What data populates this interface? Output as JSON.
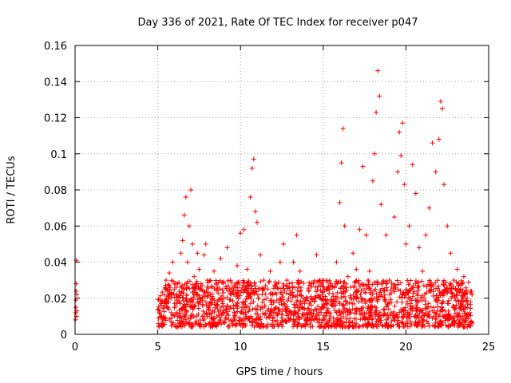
{
  "chart_data": {
    "type": "scatter",
    "title": "Day 336 of 2021, Rate Of TEC Index for receiver p047",
    "xlabel": "GPS time / hours",
    "ylabel": "ROTI / TECUs",
    "xlim": [
      0,
      25
    ],
    "ylim": [
      0,
      0.16
    ],
    "x_ticks": [
      0,
      5,
      10,
      15,
      20,
      25
    ],
    "y_ticks": [
      0,
      0.02,
      0.04,
      0.06,
      0.08,
      0.1,
      0.12,
      0.14,
      0.16
    ],
    "x_tick_labels": [
      "0",
      "5",
      "10",
      "15",
      "20",
      "25"
    ],
    "y_tick_labels": [
      "0",
      "0.02",
      "0.04",
      "0.06",
      "0.08",
      "0.1",
      "0.12",
      "0.14",
      "0.16"
    ],
    "grid": true,
    "marker": "plus",
    "color": "#ff0000",
    "series": [
      {
        "name": "p047",
        "points": [
          [
            0.02,
            0.008
          ],
          [
            0.03,
            0.012
          ],
          [
            0.04,
            0.015
          ],
          [
            0.05,
            0.019
          ],
          [
            0.06,
            0.024
          ],
          [
            0.07,
            0.028
          ],
          [
            0.08,
            0.041
          ],
          [
            0.09,
            0.01
          ],
          [
            0.1,
            0.022
          ],
          [
            0.11,
            0.013
          ],
          [
            5.1,
            0.012
          ],
          [
            5.2,
            0.018
          ],
          [
            5.3,
            0.008
          ],
          [
            5.4,
            0.022
          ],
          [
            5.5,
            0.03
          ],
          [
            5.6,
            0.015
          ],
          [
            5.7,
            0.034
          ],
          [
            5.8,
            0.02
          ],
          [
            5.9,
            0.04
          ],
          [
            6.0,
            0.025
          ],
          [
            6.1,
            0.012
          ],
          [
            6.2,
            0.028
          ],
          [
            6.3,
            0.018
          ],
          [
            6.4,
            0.045
          ],
          [
            6.5,
            0.052
          ],
          [
            6.6,
            0.066
          ],
          [
            6.7,
            0.076
          ],
          [
            6.8,
            0.04
          ],
          [
            6.9,
            0.06
          ],
          [
            7.0,
            0.08
          ],
          [
            7.1,
            0.05
          ],
          [
            7.2,
            0.032
          ],
          [
            7.3,
            0.022
          ],
          [
            7.4,
            0.045
          ],
          [
            7.5,
            0.036
          ],
          [
            7.6,
            0.028
          ],
          [
            7.7,
            0.02
          ],
          [
            7.8,
            0.044
          ],
          [
            7.9,
            0.05
          ],
          [
            8.0,
            0.03
          ],
          [
            8.2,
            0.018
          ],
          [
            8.4,
            0.035
          ],
          [
            8.6,
            0.025
          ],
          [
            8.8,
            0.042
          ],
          [
            9.0,
            0.02
          ],
          [
            9.2,
            0.048
          ],
          [
            9.4,
            0.03
          ],
          [
            9.6,
            0.022
          ],
          [
            9.8,
            0.038
          ],
          [
            10.0,
            0.056
          ],
          [
            10.2,
            0.058
          ],
          [
            10.4,
            0.036
          ],
          [
            10.6,
            0.076
          ],
          [
            10.7,
            0.092
          ],
          [
            10.8,
            0.097
          ],
          [
            10.9,
            0.068
          ],
          [
            11.0,
            0.062
          ],
          [
            11.2,
            0.044
          ],
          [
            11.4,
            0.03
          ],
          [
            11.6,
            0.02
          ],
          [
            11.8,
            0.035
          ],
          [
            12.0,
            0.018
          ],
          [
            12.2,
            0.028
          ],
          [
            12.4,
            0.04
          ],
          [
            12.6,
            0.05
          ],
          [
            12.8,
            0.03
          ],
          [
            13.0,
            0.022
          ],
          [
            13.2,
            0.04
          ],
          [
            13.4,
            0.055
          ],
          [
            13.6,
            0.035
          ],
          [
            13.8,
            0.02
          ],
          [
            14.0,
            0.012
          ],
          [
            14.2,
            0.018
          ],
          [
            14.4,
            0.028
          ],
          [
            14.6,
            0.044
          ],
          [
            14.8,
            0.02
          ],
          [
            15.0,
            0.015
          ],
          [
            15.2,
            0.03
          ],
          [
            15.4,
            0.025
          ],
          [
            15.6,
            0.018
          ],
          [
            15.8,
            0.04
          ],
          [
            16.0,
            0.073
          ],
          [
            16.1,
            0.095
          ],
          [
            16.2,
            0.114
          ],
          [
            16.3,
            0.06
          ],
          [
            16.5,
            0.032
          ],
          [
            16.8,
            0.045
          ],
          [
            17.0,
            0.036
          ],
          [
            17.2,
            0.058
          ],
          [
            17.4,
            0.093
          ],
          [
            17.6,
            0.055
          ],
          [
            17.8,
            0.035
          ],
          [
            18.0,
            0.085
          ],
          [
            18.1,
            0.1
          ],
          [
            18.2,
            0.123
          ],
          [
            18.3,
            0.146
          ],
          [
            18.4,
            0.132
          ],
          [
            18.5,
            0.072
          ],
          [
            18.8,
            0.055
          ],
          [
            19.0,
            0.03
          ],
          [
            19.3,
            0.065
          ],
          [
            19.5,
            0.09
          ],
          [
            19.6,
            0.112
          ],
          [
            19.7,
            0.099
          ],
          [
            19.8,
            0.117
          ],
          [
            19.9,
            0.083
          ],
          [
            20.0,
            0.05
          ],
          [
            20.2,
            0.06
          ],
          [
            20.4,
            0.094
          ],
          [
            20.6,
            0.078
          ],
          [
            20.8,
            0.048
          ],
          [
            21.0,
            0.035
          ],
          [
            21.2,
            0.055
          ],
          [
            21.4,
            0.07
          ],
          [
            21.6,
            0.106
          ],
          [
            21.8,
            0.09
          ],
          [
            22.0,
            0.108
          ],
          [
            22.1,
            0.129
          ],
          [
            22.2,
            0.125
          ],
          [
            22.3,
            0.083
          ],
          [
            22.5,
            0.06
          ],
          [
            22.7,
            0.045
          ],
          [
            22.9,
            0.03
          ],
          [
            23.1,
            0.036
          ],
          [
            23.3,
            0.025
          ],
          [
            23.5,
            0.032
          ],
          [
            23.7,
            0.02
          ],
          [
            23.9,
            0.018
          ],
          [
            24.0,
            0.022
          ]
        ]
      }
    ],
    "dense_band": [
      {
        "x_start": 5.0,
        "x_end": 24.0,
        "lower": 0.004,
        "upper": 0.03
      }
    ]
  }
}
